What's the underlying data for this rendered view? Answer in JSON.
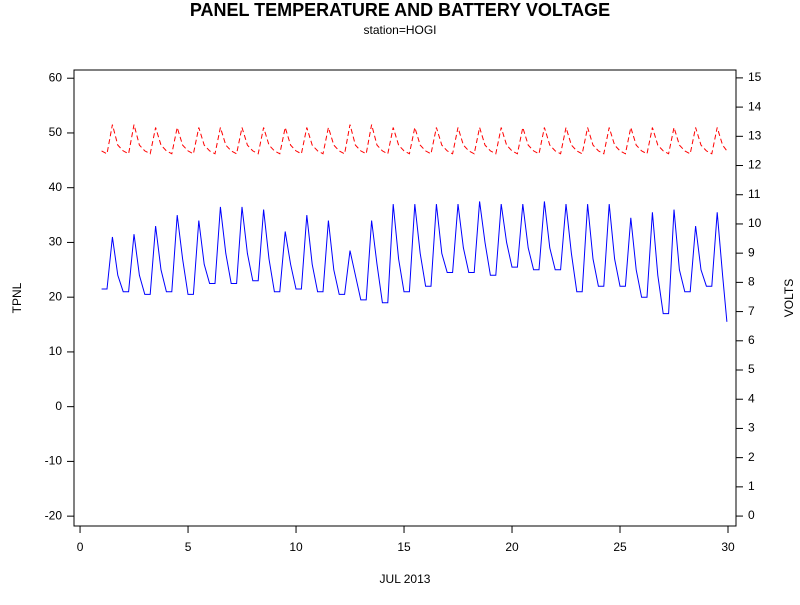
{
  "chart_data": {
    "type": "line",
    "title": "PANEL TEMPERATURE AND BATTERY VOLTAGE",
    "subtitle": "station=HOGI",
    "xlabel": "JUL 2013",
    "ylabel": "TPNL",
    "y2label": "VOLTS",
    "xlim": [
      -0.28,
      30.37
    ],
    "xticks": [
      0,
      5,
      10,
      15,
      20,
      25,
      30
    ],
    "ylim": [
      -21.8,
      61.5
    ],
    "yticks": [
      -20,
      -10,
      0,
      10,
      20,
      30,
      40,
      50,
      60
    ],
    "y2lim": [
      -0.34,
      15.27
    ],
    "y2ticks": [
      0,
      1,
      2,
      3,
      4,
      5,
      6,
      7,
      8,
      9,
      10,
      11,
      12,
      13,
      14,
      15
    ],
    "x": [
      1,
      1.25,
      1.5,
      1.75,
      2,
      2.25,
      2.5,
      2.75,
      3,
      3.25,
      3.5,
      3.75,
      4,
      4.25,
      4.5,
      4.75,
      5,
      5.25,
      5.5,
      5.75,
      6,
      6.25,
      6.5,
      6.75,
      7,
      7.25,
      7.5,
      7.75,
      8,
      8.25,
      8.5,
      8.75,
      9,
      9.25,
      9.5,
      9.75,
      10,
      10.25,
      10.5,
      10.75,
      11,
      11.25,
      11.5,
      11.75,
      12,
      12.25,
      12.5,
      12.75,
      13,
      13.25,
      13.5,
      13.75,
      14,
      14.25,
      14.5,
      14.75,
      15,
      15.25,
      15.5,
      15.75,
      16,
      16.25,
      16.5,
      16.75,
      17,
      17.25,
      17.5,
      17.75,
      18,
      18.25,
      18.5,
      18.75,
      19,
      19.25,
      19.5,
      19.75,
      20,
      20.25,
      20.5,
      20.75,
      21,
      21.25,
      21.5,
      21.75,
      22,
      22.25,
      22.5,
      22.75,
      23,
      23.25,
      23.5,
      23.75,
      24,
      24.25,
      24.5,
      24.75,
      25,
      25.25,
      25.5,
      25.75,
      26,
      26.25,
      26.5,
      26.75,
      27,
      27.25,
      27.5,
      27.75,
      28,
      28.25,
      28.5,
      28.75,
      29,
      29.25,
      29.5,
      29.75,
      29.95
    ],
    "series": [
      {
        "name": "TPNL",
        "color": "#0000ff",
        "dash": false,
        "values": [
          21.5,
          21.5,
          31,
          24,
          21,
          21,
          31.5,
          24,
          20.5,
          20.5,
          33,
          25,
          21,
          21,
          35,
          27,
          20.5,
          20.5,
          34,
          26,
          22.5,
          22.5,
          36.5,
          28,
          22.5,
          22.5,
          36.5,
          28,
          23,
          23,
          36,
          27,
          21,
          21,
          32,
          26,
          21.5,
          21.5,
          35,
          26,
          21,
          21,
          34,
          25,
          20.5,
          20.5,
          28.5,
          24,
          19.5,
          19.5,
          34,
          26,
          19,
          19,
          37,
          27,
          21,
          21,
          37,
          28,
          22,
          22,
          37,
          28,
          24.5,
          24.5,
          37,
          29,
          24.5,
          24.5,
          37.5,
          30,
          24,
          24,
          37,
          30,
          25.5,
          25.5,
          37,
          29,
          25,
          25,
          37.5,
          29,
          25,
          25,
          37,
          28,
          21,
          21,
          37,
          27,
          22,
          22,
          37,
          27,
          22,
          22,
          34.5,
          25,
          20,
          20,
          35.5,
          24,
          17,
          17,
          36,
          25,
          21,
          21,
          33,
          25,
          22,
          22,
          35.5,
          24,
          15.5
        ]
      },
      {
        "name": "VOLTS",
        "color": "#ff0000",
        "dash": true,
        "axis": "y2",
        "values": [
          12.5,
          12.4,
          13.4,
          12.7,
          12.5,
          12.4,
          13.4,
          12.7,
          12.5,
          12.4,
          13.3,
          12.7,
          12.5,
          12.4,
          13.3,
          12.7,
          12.5,
          12.4,
          13.3,
          12.7,
          12.5,
          12.4,
          13.3,
          12.7,
          12.5,
          12.4,
          13.3,
          12.7,
          12.5,
          12.4,
          13.3,
          12.7,
          12.5,
          12.4,
          13.3,
          12.7,
          12.5,
          12.4,
          13.3,
          12.7,
          12.5,
          12.4,
          13.3,
          12.7,
          12.5,
          12.4,
          13.4,
          12.7,
          12.5,
          12.4,
          13.4,
          12.7,
          12.5,
          12.4,
          13.3,
          12.7,
          12.5,
          12.4,
          13.3,
          12.7,
          12.5,
          12.4,
          13.3,
          12.7,
          12.5,
          12.4,
          13.3,
          12.7,
          12.5,
          12.4,
          13.3,
          12.7,
          12.5,
          12.4,
          13.3,
          12.7,
          12.5,
          12.4,
          13.3,
          12.7,
          12.5,
          12.4,
          13.3,
          12.7,
          12.5,
          12.4,
          13.3,
          12.7,
          12.5,
          12.4,
          13.3,
          12.7,
          12.5,
          12.4,
          13.3,
          12.7,
          12.5,
          12.4,
          13.3,
          12.7,
          12.5,
          12.4,
          13.3,
          12.7,
          12.5,
          12.4,
          13.3,
          12.7,
          12.5,
          12.4,
          13.3,
          12.7,
          12.5,
          12.4,
          13.3,
          12.7,
          12.5
        ]
      }
    ]
  }
}
